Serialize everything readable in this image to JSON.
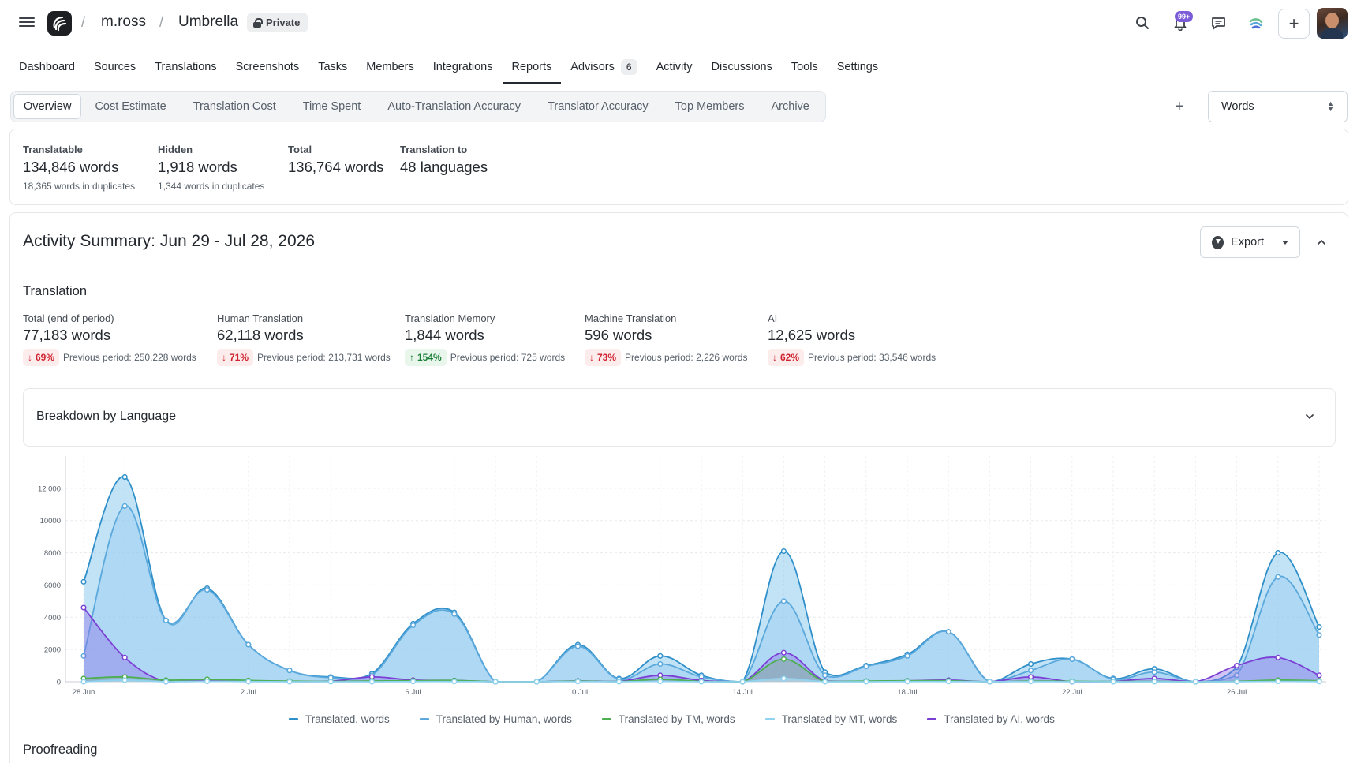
{
  "header": {
    "user": "m.ross",
    "project": "Umbrella",
    "visibility": "Private",
    "notifications_count": "99+"
  },
  "main_nav": [
    {
      "label": "Dashboard",
      "active": false
    },
    {
      "label": "Sources",
      "active": false
    },
    {
      "label": "Translations",
      "active": false
    },
    {
      "label": "Screenshots",
      "active": false
    },
    {
      "label": "Tasks",
      "active": false
    },
    {
      "label": "Members",
      "active": false
    },
    {
      "label": "Integrations",
      "active": false
    },
    {
      "label": "Reports",
      "active": true
    },
    {
      "label": "Advisors",
      "active": false,
      "count": "6"
    },
    {
      "label": "Activity",
      "active": false
    },
    {
      "label": "Discussions",
      "active": false
    },
    {
      "label": "Tools",
      "active": false
    },
    {
      "label": "Settings",
      "active": false
    }
  ],
  "sub_tabs": [
    "Overview",
    "Cost Estimate",
    "Translation Cost",
    "Time Spent",
    "Auto-Translation Accuracy",
    "Translator Accuracy",
    "Top Members",
    "Archive"
  ],
  "unit_select": {
    "value": "Words"
  },
  "stats": [
    {
      "label": "Translatable",
      "value": "134,846 words",
      "sub": "18,365 words in duplicates"
    },
    {
      "label": "Hidden",
      "value": "1,918 words",
      "sub": "1,344 words in duplicates"
    },
    {
      "label": "Total",
      "value": "136,764 words",
      "sub": ""
    },
    {
      "label": "Translation to",
      "value": "48 languages",
      "sub": ""
    }
  ],
  "activity": {
    "title": "Activity Summary: Jun 29 - Jul 28, 2026",
    "export_label": "Export",
    "translation_title": "Translation",
    "proofreading_title": "Proofreading",
    "breakdown_title": "Breakdown by Language",
    "metrics": [
      {
        "label": "Total (end of period)",
        "value": "77,183 words",
        "pct": "69%",
        "dir": "down",
        "prev": "Previous period: 250,228 words"
      },
      {
        "label": "Human Translation",
        "value": "62,118 words",
        "pct": "71%",
        "dir": "down",
        "prev": "Previous period: 213,731 words"
      },
      {
        "label": "Translation Memory",
        "value": "1,844 words",
        "pct": "154%",
        "dir": "up",
        "prev": "Previous period: 725 words"
      },
      {
        "label": "Machine Translation",
        "value": "596 words",
        "pct": "73%",
        "dir": "down",
        "prev": "Previous period: 2,226 words"
      },
      {
        "label": "AI",
        "value": "12,625 words",
        "pct": "62%",
        "dir": "down",
        "prev": "Previous period: 33,546 words"
      }
    ]
  },
  "chart_data": {
    "type": "area",
    "x": [
      "28 Jun",
      "29 Jun",
      "30 Jun",
      "1 Jul",
      "2 Jul",
      "3 Jul",
      "4 Jul",
      "5 Jul",
      "6 Jul",
      "7 Jul",
      "8 Jul",
      "9 Jul",
      "10 Jul",
      "11 Jul",
      "12 Jul",
      "13 Jul",
      "14 Jul",
      "15 Jul",
      "16 Jul",
      "17 Jul",
      "18 Jul",
      "19 Jul",
      "20 Jul",
      "21 Jul",
      "22 Jul",
      "23 Jul",
      "24 Jul",
      "25 Jul",
      "26 Jul",
      "27 Jul",
      "28 Jul"
    ],
    "x_tick_labels": [
      "28 Jun",
      "2 Jul",
      "6 Jul",
      "10 Jul",
      "14 Jul",
      "18 Jul",
      "22 Jul",
      "26 Jul"
    ],
    "ylim": [
      0,
      14000
    ],
    "y_ticks": [
      0,
      2000,
      4000,
      6000,
      8000,
      10000,
      12000
    ],
    "y_tick_labels": [
      "0",
      "2000",
      "4000",
      "6000",
      "8000",
      "10000",
      "12 000"
    ],
    "grid": true,
    "legend_position": "bottom",
    "series": [
      {
        "name": "Translated, words",
        "color": "#2e8fc9",
        "values": [
          6200,
          12700,
          3800,
          5800,
          2300,
          700,
          300,
          500,
          3600,
          4300,
          0,
          0,
          2300,
          200,
          1600,
          400,
          0,
          8100,
          600,
          1000,
          1700,
          3100,
          0,
          1100,
          1400,
          200,
          800,
          0,
          900,
          8000,
          3400
        ]
      },
      {
        "name": "Translated by Human, words",
        "color": "#5aa8dc",
        "values": [
          1600,
          10900,
          3800,
          5700,
          2300,
          700,
          250,
          400,
          3500,
          4200,
          0,
          0,
          2200,
          150,
          1100,
          300,
          0,
          5000,
          400,
          950,
          1600,
          3100,
          0,
          700,
          1400,
          150,
          600,
          0,
          400,
          6500,
          2900
        ]
      },
      {
        "name": "Translated by TM, words",
        "color": "#4caf50",
        "values": [
          200,
          300,
          100,
          150,
          80,
          40,
          20,
          50,
          60,
          80,
          0,
          0,
          40,
          10,
          150,
          20,
          0,
          1400,
          20,
          40,
          60,
          60,
          0,
          40,
          30,
          10,
          20,
          0,
          20,
          100,
          60
        ]
      },
      {
        "name": "Translated by MT, words",
        "color": "#8fd3f0",
        "values": [
          0,
          100,
          0,
          20,
          10,
          0,
          0,
          0,
          10,
          10,
          0,
          0,
          10,
          0,
          20,
          0,
          0,
          200,
          0,
          0,
          10,
          10,
          0,
          10,
          0,
          0,
          0,
          0,
          0,
          20,
          10
        ]
      },
      {
        "name": "Translated by AI, words",
        "color": "#7b3fd4",
        "values": [
          4600,
          1500,
          0,
          100,
          50,
          20,
          30,
          300,
          100,
          80,
          0,
          0,
          50,
          20,
          400,
          80,
          0,
          1800,
          50,
          30,
          60,
          100,
          0,
          300,
          0,
          20,
          200,
          0,
          1000,
          1500,
          400
        ]
      }
    ]
  }
}
